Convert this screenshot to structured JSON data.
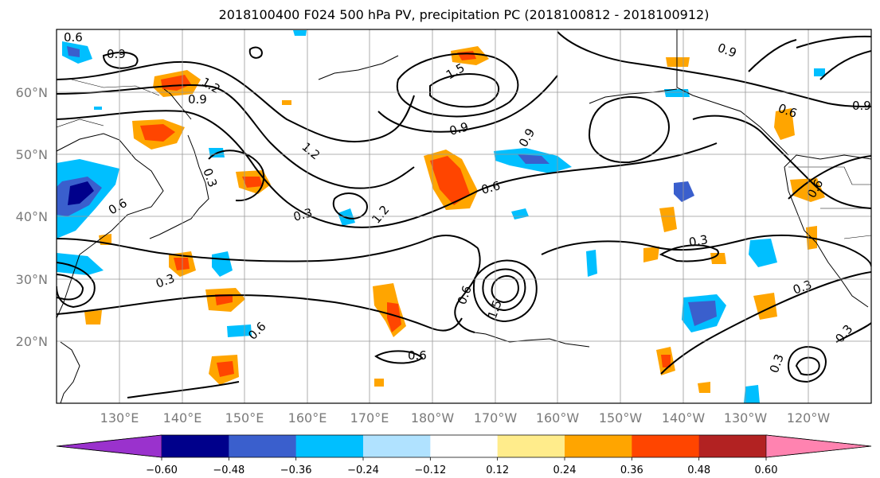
{
  "title": "2018100400 F024 500 hPa PV, precipitation PC (2018100812 - 2018100912)",
  "lat_labels": [
    "60°N",
    "50°N",
    "40°N",
    "30°N",
    "20°N"
  ],
  "lon_labels": [
    "130°E",
    "140°E",
    "150°E",
    "160°E",
    "170°E",
    "180°W",
    "170°W",
    "160°W",
    "150°W",
    "140°W",
    "130°W",
    "120°W"
  ],
  "colorbar": {
    "tick_labels": [
      "−0.60",
      "−0.48",
      "−0.36",
      "−0.24",
      "−0.12",
      "0.12",
      "0.24",
      "0.36",
      "0.48",
      "0.60"
    ],
    "colors": [
      "#9a32cd",
      "#00008b",
      "#3a5fcd",
      "#00bfff",
      "#b0e2ff",
      "#ffffff",
      "#ffec8b",
      "#ffa500",
      "#ff4500",
      "#b22222",
      "#ff83b0"
    ]
  },
  "contour_labels": [
    "0.6",
    "0.9",
    "1.2",
    "1.5",
    "0.9",
    "0.3",
    "1.2",
    "0.3",
    "1.2",
    "0.9",
    "0.6",
    "0.6",
    "0.9",
    "0.3",
    "0.6",
    "0.9",
    "0.9",
    "0.6",
    "0.3",
    "0.6",
    "0.3",
    "0.6",
    "1.5",
    "0.3",
    "0.3",
    "0.6"
  ]
}
